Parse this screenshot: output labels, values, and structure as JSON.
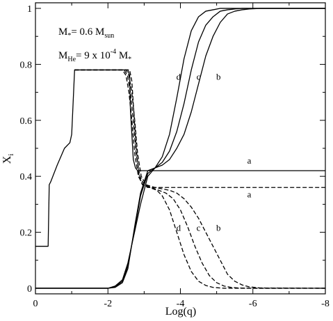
{
  "chart_data": {
    "type": "line",
    "xlabel": "Log(q)",
    "ylabel": "X",
    "ylabel_sub": "i",
    "xlim": [
      0,
      -8
    ],
    "ylim": [
      -0.02,
      1.02
    ],
    "x_ticks": [
      0,
      -2,
      -4,
      -6,
      -8
    ],
    "x_tick_labels": [
      "0",
      "-2",
      "-4",
      "-6",
      "-8"
    ],
    "y_ticks": [
      0,
      0.2,
      0.4,
      0.6,
      0.8,
      1
    ],
    "y_tick_labels": [
      "0",
      "0.2",
      "0.4",
      "0.6",
      "0.8",
      "1"
    ],
    "annotations": {
      "mass": {
        "text": "M",
        "sub1": "*",
        "mid": "= 0.6 M",
        "sub2": "sun"
      },
      "mhe": {
        "text": "M",
        "sub1": "He",
        "mid": "= 9 x 10",
        "sup": "-4",
        "end": " M",
        "sub2": "*"
      }
    },
    "curve_labels": [
      {
        "text": "d",
        "x": -3.95,
        "y": 0.745
      },
      {
        "text": "c",
        "x": -4.5,
        "y": 0.745
      },
      {
        "text": "b",
        "x": -5.05,
        "y": 0.745
      },
      {
        "text": "a",
        "x": -5.9,
        "y": 0.445
      },
      {
        "text": "a",
        "x": -5.9,
        "y": 0.325
      },
      {
        "text": "d",
        "x": -3.95,
        "y": 0.205
      },
      {
        "text": "c",
        "x": -4.5,
        "y": 0.205
      },
      {
        "text": "b",
        "x": -5.05,
        "y": 0.205
      }
    ],
    "series": [
      {
        "style": "solid",
        "x": [
          0,
          -0.35,
          -0.38,
          -0.42,
          -0.6,
          -0.8,
          -0.95,
          -1.0,
          -1.08,
          -2.55,
          -2.6,
          -2.62,
          -2.66,
          -2.7,
          -2.76,
          -2.82,
          -2.9,
          -3.0,
          -3.2,
          -3.5,
          -8
        ],
        "y": [
          0.15,
          0.15,
          0.37,
          0.38,
          0.44,
          0.5,
          0.52,
          0.55,
          0.78,
          0.78,
          0.76,
          0.64,
          0.55,
          0.46,
          0.43,
          0.42,
          0.42,
          0.42,
          0.42,
          0.42,
          0.42
        ]
      },
      {
        "style": "solid",
        "x": [
          0,
          -2.0,
          -2.2,
          -2.4,
          -2.55,
          -2.65,
          -2.75,
          -2.9,
          -3.1,
          -3.3,
          -3.5,
          -3.7,
          -3.9,
          -4.1,
          -4.3,
          -4.5,
          -4.7,
          -4.9,
          -5.1,
          -5.3,
          -5.5,
          -5.7,
          -5.9,
          -6.2,
          -8
        ],
        "y": [
          0,
          0,
          0.003,
          0.02,
          0.07,
          0.15,
          0.23,
          0.34,
          0.42,
          0.43,
          0.44,
          0.46,
          0.5,
          0.55,
          0.63,
          0.73,
          0.83,
          0.9,
          0.95,
          0.98,
          0.99,
          0.995,
          0.998,
          1,
          1
        ]
      },
      {
        "style": "solid",
        "x": [
          0,
          -2.0,
          -2.2,
          -2.4,
          -2.55,
          -2.65,
          -2.75,
          -2.9,
          -3.1,
          -3.3,
          -3.5,
          -3.7,
          -3.9,
          -4.1,
          -4.3,
          -4.5,
          -4.7,
          -4.9,
          -5.1,
          -5.3,
          -5.5,
          -5.7,
          -6.0,
          -8
        ],
        "y": [
          0,
          0,
          0.005,
          0.025,
          0.08,
          0.15,
          0.22,
          0.33,
          0.41,
          0.43,
          0.45,
          0.49,
          0.56,
          0.66,
          0.78,
          0.88,
          0.94,
          0.97,
          0.99,
          0.995,
          0.998,
          1,
          1,
          1
        ]
      },
      {
        "style": "solid",
        "x": [
          0,
          -2.0,
          -2.2,
          -2.4,
          -2.55,
          -2.65,
          -2.75,
          -2.9,
          -3.1,
          -3.3,
          -3.5,
          -3.7,
          -3.9,
          -4.1,
          -4.3,
          -4.5,
          -4.7,
          -4.9,
          -5.1,
          -5.4,
          -8
        ],
        "y": [
          0,
          0,
          0.008,
          0.03,
          0.09,
          0.15,
          0.21,
          0.3,
          0.4,
          0.43,
          0.47,
          0.55,
          0.68,
          0.82,
          0.92,
          0.97,
          0.99,
          0.995,
          1,
          1,
          1
        ]
      },
      {
        "style": "dashed",
        "x": [
          -1.08,
          -2.6,
          -2.66,
          -2.72,
          -2.78,
          -2.86,
          -2.95,
          -3.1,
          -3.3,
          -8
        ],
        "y": [
          0.78,
          0.78,
          0.74,
          0.62,
          0.5,
          0.4,
          0.37,
          0.36,
          0.36,
          0.36
        ]
      },
      {
        "style": "dashed",
        "x": [
          -1.08,
          -2.5,
          -2.58,
          -2.66,
          -2.74,
          -2.82,
          -2.92,
          -3.05,
          -3.3,
          -3.5,
          -3.7,
          -3.9,
          -4.1,
          -4.3,
          -4.5,
          -4.7,
          -4.9,
          -5.1,
          -5.3,
          -5.5,
          -5.7,
          -5.9,
          -6.2,
          -8
        ],
        "y": [
          0.78,
          0.78,
          0.76,
          0.7,
          0.6,
          0.48,
          0.4,
          0.37,
          0.36,
          0.355,
          0.35,
          0.34,
          0.32,
          0.29,
          0.25,
          0.2,
          0.15,
          0.1,
          0.05,
          0.025,
          0.012,
          0.005,
          0.001,
          0
        ]
      },
      {
        "style": "dashed",
        "x": [
          -1.08,
          -2.45,
          -2.54,
          -2.62,
          -2.7,
          -2.78,
          -2.88,
          -3.0,
          -3.2,
          -3.4,
          -3.6,
          -3.8,
          -4.0,
          -4.2,
          -4.4,
          -4.6,
          -4.8,
          -5.0,
          -5.2,
          -5.4,
          -5.6,
          -6.0,
          -8
        ],
        "y": [
          0.78,
          0.78,
          0.76,
          0.7,
          0.6,
          0.48,
          0.4,
          0.37,
          0.36,
          0.35,
          0.34,
          0.32,
          0.28,
          0.22,
          0.15,
          0.09,
          0.045,
          0.02,
          0.008,
          0.003,
          0.001,
          0,
          0
        ]
      },
      {
        "style": "dashed",
        "x": [
          -1.08,
          -2.4,
          -2.5,
          -2.58,
          -2.66,
          -2.74,
          -2.84,
          -2.96,
          -3.15,
          -3.35,
          -3.5,
          -3.7,
          -3.9,
          -4.1,
          -4.3,
          -4.5,
          -4.7,
          -4.9,
          -5.2,
          -8
        ],
        "y": [
          0.78,
          0.78,
          0.76,
          0.7,
          0.6,
          0.48,
          0.4,
          0.37,
          0.36,
          0.35,
          0.33,
          0.28,
          0.2,
          0.12,
          0.06,
          0.025,
          0.01,
          0.003,
          0,
          0
        ]
      }
    ]
  }
}
